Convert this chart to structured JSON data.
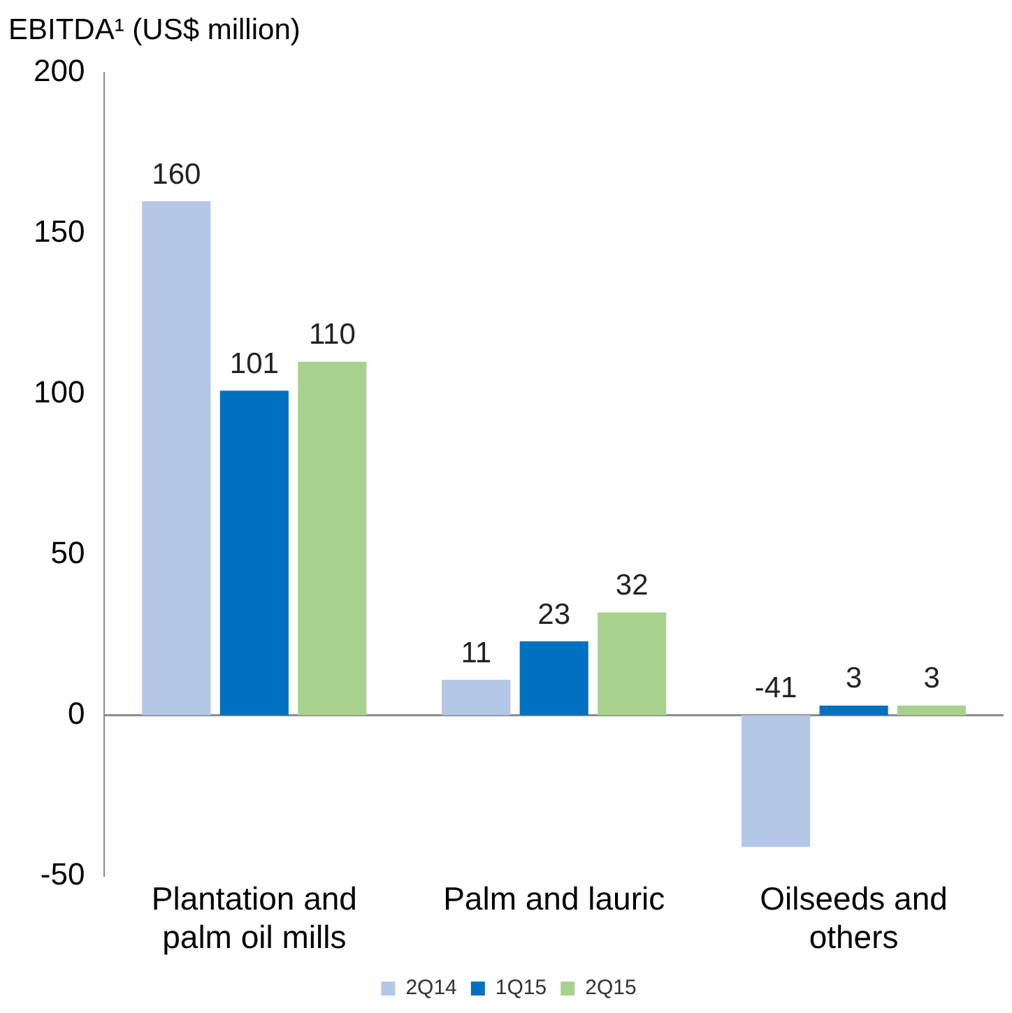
{
  "chart_data": {
    "type": "bar",
    "ylabel": "EBITDA¹ (US$ million)",
    "categories": [
      "Plantation and palm oil mills",
      "Palm and lauric",
      "Oilseeds and others"
    ],
    "series": [
      {
        "name": "2Q14",
        "color": "#b4c7e7",
        "values": [
          160,
          11,
          -41
        ]
      },
      {
        "name": "1Q15",
        "color": "#0070c0",
        "values": [
          101,
          23,
          3
        ]
      },
      {
        "name": "2Q15",
        "color": "#a9d18e",
        "values": [
          110,
          32,
          3
        ]
      }
    ],
    "ylim": [
      -50,
      200
    ],
    "yticks": [
      -50,
      0,
      50,
      100,
      150,
      200
    ],
    "grid": false,
    "ref_lines": [
      {
        "axis": "y",
        "value": 0,
        "color": "#888888"
      }
    ],
    "legend": "bottom",
    "data_labels": true
  }
}
